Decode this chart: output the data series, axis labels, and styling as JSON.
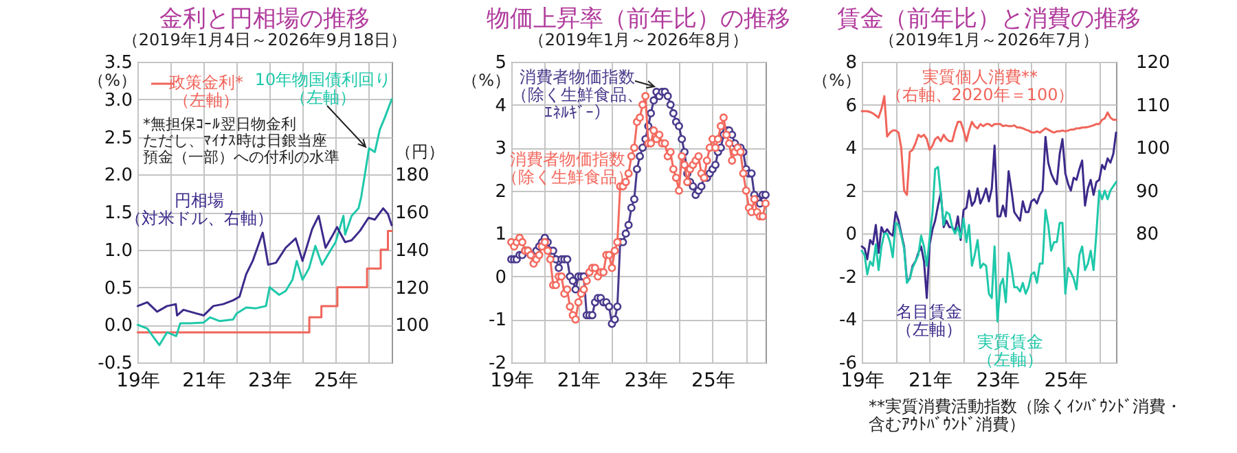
{
  "chart_data": [
    {
      "type": "line",
      "title": "金利と円相場の推移",
      "subtitle": "（2019年1月4日～2026年9月18日）",
      "ylabel": "（%）",
      "y2label": "（円）",
      "xlim": [
        "2019-01-01",
        "2026-09-18"
      ],
      "xticks": [
        {
          "value": "2019-01",
          "label": "19年"
        },
        {
          "value": "2020-01",
          "label": null
        },
        {
          "value": "2021-01",
          "label": "21年"
        },
        {
          "value": "2022-01",
          "label": null
        },
        {
          "value": "2023-01",
          "label": "23年"
        },
        {
          "value": "2024-01",
          "label": null
        },
        {
          "value": "2025-01",
          "label": "25年"
        },
        {
          "value": "2026-01",
          "label": null
        }
      ],
      "ylim": [
        -0.5,
        3.5
      ],
      "yticks": [
        -0.5,
        {
          "value": 0,
          "label": "0.0"
        },
        0.5,
        {
          "value": 1,
          "label": "1.0"
        },
        1.5,
        {
          "value": 2,
          "label": "2.0"
        },
        2.5,
        {
          "value": 3,
          "label": "3.0"
        },
        3.5
      ],
      "y2lim": [
        80,
        240
      ],
      "y2ticks": [
        100,
        120,
        140,
        160,
        180
      ],
      "grid": true,
      "annotations": [
        "*無担保ｺｰﾙ翌日物金利ただし、ﾏｲﾅｽ時は日銀当座預金（一部）への付利の水準"
      ],
      "series": [
        {
          "name": "政策金利*（左軸）",
          "type": "step",
          "color": "#f0645a",
          "x": [
            "2019-01-04",
            "2024-03-19",
            "2024-07-31",
            "2025-01-24",
            "2025-12-19",
            "2026-05-19",
            "2026-08-07",
            "2026-09-18"
          ],
          "values": [
            -0.1,
            0.1,
            0.25,
            0.5,
            0.75,
            1.0,
            1.25,
            1.25
          ]
        },
        {
          "name": "10年物国債利回り（左軸）",
          "color": "#1fc8aa",
          "x": [
            "2019-01-04",
            "2019-04-20",
            "2019-08-01",
            "2019-09-01",
            "2019-11-25",
            "2020-03-05",
            "2020-04-20",
            "2020-08-07",
            "2021-01-04",
            "2021-03-15",
            "2021-07-01",
            "2021-11-25",
            "2022-01-04",
            "2022-04-20",
            "2022-08-07",
            "2022-11-25",
            "2023-01-04",
            "2023-04-20",
            "2023-07-01",
            "2023-09-15",
            "2023-11-01",
            "2024-01-04",
            "2024-03-15",
            "2024-05-25",
            "2024-08-07",
            "2024-10-20",
            "2025-01-04",
            "2025-04-01",
            "2025-04-20",
            "2025-07-01",
            "2025-09-15",
            "2025-10-15",
            "2025-12-01",
            "2026-01-10",
            "2026-03-15",
            "2026-05-10",
            "2026-07-01",
            "2026-09-18"
          ],
          "values": [
            0.0,
            -0.05,
            -0.22,
            -0.27,
            -0.1,
            -0.15,
            0.02,
            0.02,
            0.03,
            0.1,
            0.05,
            0.07,
            0.15,
            0.23,
            0.22,
            0.25,
            0.5,
            0.4,
            0.45,
            0.6,
            0.85,
            0.6,
            0.75,
            1.05,
            0.8,
            0.95,
            1.1,
            1.45,
            1.2,
            1.45,
            1.55,
            1.7,
            2.05,
            2.35,
            2.3,
            2.6,
            2.75,
            3.0
          ]
        },
        {
          "name": "円相場（対米ドル、右軸）",
          "color": "#3d2a8a",
          "axis": "y2",
          "x": [
            "2019-01-04",
            "2019-04-20",
            "2019-08-07",
            "2019-11-25",
            "2020-03-01",
            "2020-03-15",
            "2020-05-25",
            "2020-10-20",
            "2021-01-04",
            "2021-04-20",
            "2021-08-07",
            "2021-11-25",
            "2022-02-05",
            "2022-04-20",
            "2022-07-01",
            "2022-10-20",
            "2022-12-20",
            "2023-03-15",
            "2023-07-01",
            "2023-10-20",
            "2024-01-04",
            "2024-04-20",
            "2024-07-01",
            "2024-09-15",
            "2024-11-25",
            "2025-01-20",
            "2025-04-20",
            "2025-07-01",
            "2025-10-01",
            "2026-01-04",
            "2026-03-15",
            "2026-06-15",
            "2026-08-07",
            "2026-09-18"
          ],
          "values": [
            110,
            112,
            107,
            110,
            111,
            105,
            108,
            106,
            105,
            110,
            111,
            113,
            115,
            127,
            134,
            149,
            132,
            133,
            141,
            146,
            134,
            151,
            158,
            141,
            147,
            152,
            144,
            145,
            150,
            157,
            156,
            162,
            159,
            153
          ]
        }
      ]
    },
    {
      "type": "line",
      "title": "物価上昇率（前年比）の推移",
      "subtitle": "（2019年1月～2026年8月）",
      "ylabel": "（%）",
      "marker": "circle",
      "xlim": [
        "2019-01",
        "2026-08"
      ],
      "xticks": [
        {
          "value": "2019-01",
          "label": "19年"
        },
        {
          "value": "2020-01",
          "label": null
        },
        {
          "value": "2021-01",
          "label": "21年"
        },
        {
          "value": "2022-01",
          "label": null
        },
        {
          "value": "2023-01",
          "label": "23年"
        },
        {
          "value": "2024-01",
          "label": null
        },
        {
          "value": "2025-01",
          "label": "25年"
        },
        {
          "value": "2026-01",
          "label": null
        }
      ],
      "ylim": [
        -2,
        5
      ],
      "yticks": [
        -2,
        -1,
        0,
        1,
        2,
        3,
        4,
        5
      ],
      "grid": true,
      "x": [
        "2019-01",
        "2019-02",
        "2019-03",
        "2019-04",
        "2019-05",
        "2019-06",
        "2019-07",
        "2019-08",
        "2019-09",
        "2019-10",
        "2019-11",
        "2019-12",
        "2020-01",
        "2020-02",
        "2020-03",
        "2020-04",
        "2020-05",
        "2020-06",
        "2020-07",
        "2020-08",
        "2020-09",
        "2020-10",
        "2020-11",
        "2020-12",
        "2021-01",
        "2021-02",
        "2021-03",
        "2021-04",
        "2021-05",
        "2021-06",
        "2021-07",
        "2021-08",
        "2021-09",
        "2021-10",
        "2021-11",
        "2021-12",
        "2022-01",
        "2022-02",
        "2022-03",
        "2022-04",
        "2022-05",
        "2022-06",
        "2022-07",
        "2022-08",
        "2022-09",
        "2022-10",
        "2022-11",
        "2022-12",
        "2023-01",
        "2023-02",
        "2023-03",
        "2023-04",
        "2023-05",
        "2023-06",
        "2023-07",
        "2023-08",
        "2023-09",
        "2023-10",
        "2023-11",
        "2023-12",
        "2024-01",
        "2024-02",
        "2024-03",
        "2024-04",
        "2024-05",
        "2024-06",
        "2024-07",
        "2024-08",
        "2024-09",
        "2024-10",
        "2024-11",
        "2024-12",
        "2025-01",
        "2025-02",
        "2025-03",
        "2025-04",
        "2025-05",
        "2025-06",
        "2025-07",
        "2025-08",
        "2025-09",
        "2025-10",
        "2025-11",
        "2025-12",
        "2026-01",
        "2026-02",
        "2026-03",
        "2026-04",
        "2026-05",
        "2026-06",
        "2026-07",
        "2026-08"
      ],
      "series": [
        {
          "name": "消費者物価指数（除く生鮮食品、ｴﾈﾙｷﾞｰ）",
          "color": "#4a3a8c",
          "values": [
            0.4,
            0.4,
            0.4,
            0.5,
            0.5,
            0.6,
            0.6,
            0.5,
            0.5,
            0.6,
            0.7,
            0.8,
            0.9,
            0.8,
            0.6,
            0.6,
            0.4,
            0.2,
            0.4,
            0.4,
            0.4,
            0.0,
            -0.1,
            -0.3,
            0.0,
            0.0,
            0.0,
            -0.9,
            -0.9,
            -0.9,
            -0.6,
            -0.5,
            -0.5,
            -0.6,
            -0.6,
            -0.7,
            -1.1,
            -1.0,
            -0.7,
            0.8,
            0.8,
            1.0,
            1.2,
            1.6,
            1.8,
            2.5,
            2.8,
            3.0,
            3.2,
            3.5,
            3.8,
            4.1,
            4.3,
            4.2,
            4.3,
            4.3,
            4.2,
            4.0,
            3.8,
            3.6,
            3.5,
            3.2,
            2.9,
            2.4,
            2.2,
            2.1,
            1.9,
            2.0,
            2.1,
            2.3,
            2.3,
            2.4,
            2.5,
            2.6,
            2.9,
            3.0,
            3.3,
            3.4,
            3.4,
            3.3,
            3.1,
            3.0,
            3.0,
            2.9,
            2.5,
            2.4,
            2.4,
            1.9,
            1.8,
            1.7,
            1.9,
            1.9
          ]
        },
        {
          "name": "消費者物価指数（除く生鮮食品）",
          "color": "#f46a5f",
          "values": [
            0.8,
            0.7,
            0.8,
            0.9,
            0.8,
            0.6,
            0.6,
            0.5,
            0.3,
            0.4,
            0.5,
            0.7,
            0.8,
            0.6,
            0.4,
            -0.2,
            -0.2,
            0.0,
            0.0,
            -0.4,
            -0.3,
            -0.7,
            -0.9,
            -1.0,
            -0.6,
            -0.4,
            -0.3,
            -0.1,
            0.1,
            0.2,
            0.2,
            0.0,
            0.1,
            0.1,
            0.5,
            0.5,
            0.2,
            0.6,
            0.8,
            2.1,
            2.1,
            2.2,
            2.4,
            2.8,
            3.0,
            3.6,
            3.7,
            4.0,
            4.2,
            3.1,
            3.1,
            3.4,
            3.2,
            3.3,
            3.1,
            3.1,
            2.8,
            2.9,
            2.5,
            2.3,
            2.0,
            2.8,
            2.6,
            2.2,
            2.5,
            2.6,
            2.7,
            2.8,
            2.4,
            2.3,
            2.7,
            3.0,
            3.2,
            3.0,
            3.2,
            3.5,
            3.7,
            3.3,
            3.1,
            2.7,
            2.9,
            3.0,
            2.9,
            2.4,
            2.0,
            1.6,
            1.5,
            1.8,
            1.5,
            1.4,
            1.4,
            1.7
          ]
        }
      ]
    },
    {
      "type": "line",
      "title": "賃金（前年比）と消費の推移",
      "subtitle": "（2019年1月～2026年7月）",
      "ylabel": "（%）",
      "xlim": [
        "2019-01",
        "2026-07"
      ],
      "xticks": [
        {
          "value": "2019-01",
          "label": "19年"
        },
        {
          "value": "2020-01",
          "label": null
        },
        {
          "value": "2021-01",
          "label": "21年"
        },
        {
          "value": "2022-01",
          "label": null
        },
        {
          "value": "2023-01",
          "label": "23年"
        },
        {
          "value": "2024-01",
          "label": null
        },
        {
          "value": "2025-01",
          "label": "25年"
        },
        {
          "value": "2026-01",
          "label": null
        }
      ],
      "ylim": [
        -6,
        8
      ],
      "yticks": [
        -6,
        -4,
        -2,
        0,
        2,
        4,
        6,
        8
      ],
      "y2lim": [
        50,
        120
      ],
      "y2ticks": [
        80,
        90,
        100,
        110,
        120
      ],
      "grid": true,
      "annotations": [
        "**実質消費活動指数（除くｲﾝﾊﾞｳﾝﾄﾞ消費・含むｱｳﾄﾊﾞｳﾝﾄﾞ消費）"
      ],
      "x": [
        "2019-01",
        "2019-02",
        "2019-03",
        "2019-04",
        "2019-05",
        "2019-06",
        "2019-07",
        "2019-08",
        "2019-09",
        "2019-10",
        "2019-11",
        "2019-12",
        "2020-01",
        "2020-02",
        "2020-03",
        "2020-04",
        "2020-05",
        "2020-06",
        "2020-07",
        "2020-08",
        "2020-09",
        "2020-10",
        "2020-11",
        "2020-12",
        "2021-01",
        "2021-02",
        "2021-03",
        "2021-04",
        "2021-05",
        "2021-06",
        "2021-07",
        "2021-08",
        "2021-09",
        "2021-10",
        "2021-11",
        "2021-12",
        "2022-01",
        "2022-02",
        "2022-03",
        "2022-04",
        "2022-05",
        "2022-06",
        "2022-07",
        "2022-08",
        "2022-09",
        "2022-10",
        "2022-11",
        "2022-12",
        "2023-01",
        "2023-02",
        "2023-03",
        "2023-04",
        "2023-05",
        "2023-06",
        "2023-07",
        "2023-08",
        "2023-09",
        "2023-10",
        "2023-11",
        "2023-12",
        "2024-01",
        "2024-02",
        "2024-03",
        "2024-04",
        "2024-05",
        "2024-06",
        "2024-07",
        "2024-08",
        "2024-09",
        "2024-10",
        "2024-11",
        "2024-12",
        "2025-01",
        "2025-02",
        "2025-03",
        "2025-04",
        "2025-05",
        "2025-06",
        "2025-07",
        "2025-08",
        "2025-09",
        "2025-10",
        "2025-11",
        "2025-12",
        "2026-01",
        "2026-02",
        "2026-03",
        "2026-04",
        "2026-05",
        "2026-06",
        "2026-07"
      ],
      "series": [
        {
          "name": "実質個人消費**（右軸、2020年＝100）",
          "color": "#f0645a",
          "axis": "y2",
          "values": [
            108.5,
            108.5,
            108.5,
            108.3,
            108,
            107.5,
            107,
            109,
            112,
            102.6,
            103.5,
            104,
            104,
            103.5,
            100,
            90,
            89,
            99,
            99.5,
            101,
            103,
            102.5,
            103,
            102,
            99.5,
            100.5,
            102,
            102.5,
            101.5,
            103,
            102,
            101.5,
            101.5,
            104,
            106,
            106,
            104,
            101.5,
            104,
            106,
            105,
            104.5,
            105.5,
            105,
            105.5,
            105.5,
            105,
            105.5,
            105.5,
            105.5,
            105,
            105.2,
            105,
            105,
            105.2,
            104.7,
            104.7,
            104.5,
            104.2,
            104,
            103.6,
            103.5,
            103.8,
            103.5,
            104,
            104.5,
            104.2,
            103.8,
            103.5,
            103.8,
            103.8,
            104,
            103.8,
            104,
            104.2,
            104.2,
            104.5,
            104.5,
            104.7,
            104.7,
            104.8,
            105,
            105.2,
            105.5,
            105.5,
            106.5,
            106.8,
            108.2,
            107,
            106.5,
            106.5
          ]
        },
        {
          "name": "名目賃金（左軸）",
          "color": "#3d2a8a",
          "values": [
            -0.6,
            -0.7,
            -1.2,
            -0.3,
            -0.5,
            0.4,
            -0.9,
            0.3,
            0.0,
            0.2,
            0.0,
            -0.1,
            1.0,
            0.6,
            0.0,
            -0.6,
            -2.2,
            -2.1,
            -1.5,
            -1.3,
            -0.9,
            -0.6,
            -1.3,
            -3.0,
            -0.5,
            0.2,
            0.6,
            1.3,
            1.9,
            0.3,
            0.6,
            0.3,
            0.3,
            0.1,
            0.8,
            -0.3,
            1.1,
            1.2,
            2.0,
            1.3,
            1.5,
            2.1,
            1.4,
            1.7,
            2.1,
            1.5,
            2.1,
            4.1,
            0.8,
            0.8,
            1.3,
            0.8,
            2.9,
            2.0,
            1.0,
            0.8,
            0.6,
            1.5,
            1.0,
            1.0,
            1.5,
            1.6,
            1.4,
            1.8,
            2.0,
            4.5,
            3.3,
            2.8,
            2.5,
            2.3,
            3.7,
            4.4,
            2.8,
            2.3,
            2.0,
            2.6,
            2.5,
            3.0,
            3.4,
            1.3,
            2.1,
            2.5,
            1.8,
            2.4,
            2.5,
            3.2,
            3.0,
            3.5,
            3.3,
            3.7,
            4.7
          ]
        },
        {
          "name": "実質賃金（左軸）",
          "color": "#1fc8aa",
          "values": [
            -0.8,
            -1.0,
            -1.9,
            -1.3,
            -1.5,
            -0.5,
            -1.7,
            -0.6,
            0.0,
            0.0,
            -0.4,
            -1.1,
            0.5,
            0.4,
            -0.1,
            -0.7,
            -2.3,
            -2.1,
            -1.6,
            -1.3,
            -1.0,
            -0.1,
            -0.6,
            -1.5,
            -0.2,
            1.0,
            3.0,
            3.1,
            1.8,
            0.4,
            1.0,
            0.9,
            0.3,
            0.0,
            0.3,
            -0.2,
            0.7,
            -0.4,
            0.4,
            -1.5,
            -1.0,
            -0.3,
            -1.6,
            -1.4,
            -1.5,
            -2.8,
            -3.0,
            -0.6,
            -4.1,
            -2.4,
            -2.1,
            -3.2,
            -0.9,
            -1.6,
            -2.5,
            -2.5,
            -2.7,
            -2.3,
            -2.8,
            -2.5,
            -1.9,
            -1.8,
            -2.3,
            -1.4,
            -1.4,
            1.1,
            0.4,
            -0.8,
            -0.4,
            -0.4,
            0.5,
            0.5,
            -2.8,
            -1.6,
            -1.8,
            -2.1,
            -2.6,
            -1.0,
            -0.6,
            -1.7,
            -1.4,
            -0.8,
            -1.7,
            0.0,
            2.0,
            1.6,
            2.0,
            1.6,
            2.0,
            2.2,
            2.4
          ]
        }
      ]
    }
  ]
}
